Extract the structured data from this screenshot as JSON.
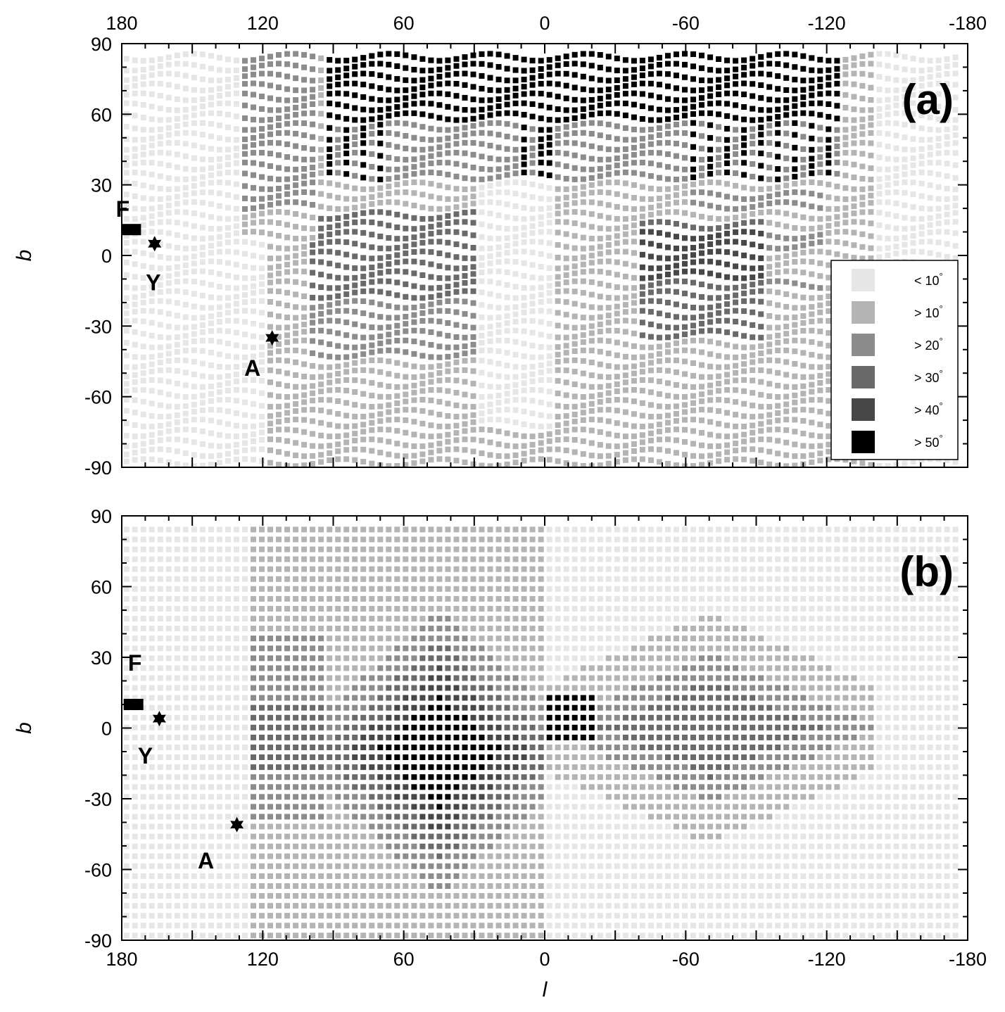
{
  "chart_data": [
    {
      "type": "heatmap",
      "panel_label": "(a)",
      "xlabel": "",
      "ylabel": "b",
      "xlim": [
        180,
        -180
      ],
      "ylim": [
        -90,
        90
      ],
      "x_ticks": [
        180,
        120,
        60,
        0,
        -60,
        -120,
        -180
      ],
      "y_ticks": [
        90,
        60,
        30,
        0,
        -30,
        -60,
        -90
      ],
      "x_tick_labels": [
        "180",
        "120",
        "60",
        "0",
        "-60",
        "-120",
        "-180"
      ],
      "y_tick_labels": [
        "90",
        "60",
        "30",
        "0",
        "-30",
        "-60",
        "-90"
      ],
      "x_tick_position": "top",
      "grid": false,
      "legend_position": "right",
      "legend": [
        {
          "label": "< 10",
          "color": "#e6e6e6"
        },
        {
          "label": "> 10",
          "color": "#b4b4b4"
        },
        {
          "label": "> 20",
          "color": "#8c8c8c"
        },
        {
          "label": "> 30",
          "color": "#6a6a6a"
        },
        {
          "label": "> 40",
          "color": "#474747"
        },
        {
          "label": "> 50",
          "color": "#000000"
        }
      ],
      "legend_degree_symbol": "°",
      "markers": [
        {
          "label": "F",
          "l": 176,
          "b": 11,
          "shape": "square"
        },
        {
          "label": "Y",
          "l": 166,
          "b": 5,
          "shape": "star"
        },
        {
          "label": "A",
          "l": 116,
          "b": -35,
          "shape": "star"
        }
      ]
    },
    {
      "type": "heatmap",
      "panel_label": "(b)",
      "xlabel": "l",
      "ylabel": "b",
      "xlim": [
        180,
        -180
      ],
      "ylim": [
        -90,
        90
      ],
      "x_ticks": [
        180,
        120,
        60,
        0,
        -60,
        -120,
        -180
      ],
      "y_ticks": [
        90,
        60,
        30,
        0,
        -30,
        -60,
        -90
      ],
      "x_tick_labels": [
        "180",
        "120",
        "60",
        "0",
        "-60",
        "-120",
        "-180"
      ],
      "y_tick_labels": [
        "90",
        "60",
        "30",
        "0",
        "-30",
        "-60",
        "-90"
      ],
      "x_tick_position": "bottom",
      "grid": false,
      "markers": [
        {
          "label": "F",
          "l": 175,
          "b": 10,
          "shape": "square"
        },
        {
          "label": "Y",
          "l": 164,
          "b": 4,
          "shape": "star"
        },
        {
          "label": "A",
          "l": 131,
          "b": -41,
          "shape": "star"
        }
      ]
    }
  ]
}
